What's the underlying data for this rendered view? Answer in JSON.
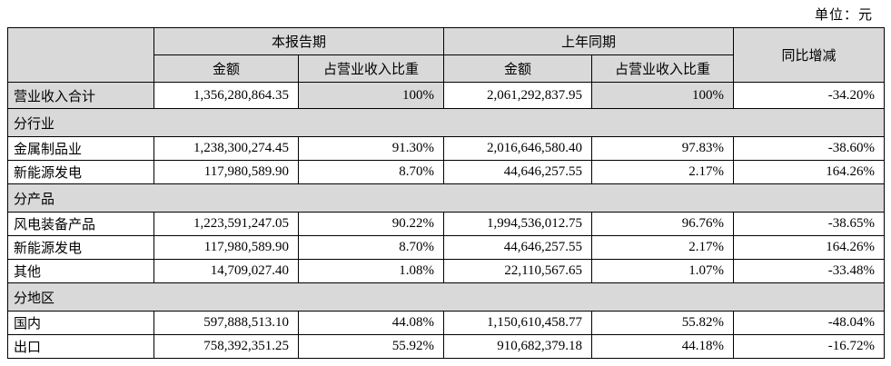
{
  "unit_label": "单位：元",
  "table": {
    "header": {
      "current_period": "本报告期",
      "prior_period": "上年同期",
      "yoy_change": "同比增减",
      "amount": "金额",
      "revenue_share": "占营业收入比重"
    },
    "rows": [
      {
        "type": "total",
        "label": "营业收入合计",
        "cur_amount": "1,356,280,864.35",
        "cur_share": "100%",
        "prior_amount": "2,061,292,837.95",
        "prior_share": "100%",
        "yoy": "-34.20%"
      },
      {
        "type": "section",
        "label": "分行业"
      },
      {
        "type": "data",
        "label": "金属制品业",
        "cur_amount": "1,238,300,274.45",
        "cur_share": "91.30%",
        "prior_amount": "2,016,646,580.40",
        "prior_share": "97.83%",
        "yoy": "-38.60%"
      },
      {
        "type": "data",
        "label": "新能源发电",
        "cur_amount": "117,980,589.90",
        "cur_share": "8.70%",
        "prior_amount": "44,646,257.55",
        "prior_share": "2.17%",
        "yoy": "164.26%"
      },
      {
        "type": "section",
        "label": "分产品"
      },
      {
        "type": "data",
        "label": "风电装备产品",
        "cur_amount": "1,223,591,247.05",
        "cur_share": "90.22%",
        "prior_amount": "1,994,536,012.75",
        "prior_share": "96.76%",
        "yoy": "-38.65%"
      },
      {
        "type": "data",
        "label": "新能源发电",
        "cur_amount": "117,980,589.90",
        "cur_share": "8.70%",
        "prior_amount": "44,646,257.55",
        "prior_share": "2.17%",
        "yoy": "164.26%"
      },
      {
        "type": "data",
        "label": "其他",
        "cur_amount": "14,709,027.40",
        "cur_share": "1.08%",
        "prior_amount": "22,110,567.65",
        "prior_share": "1.07%",
        "yoy": "-33.48%"
      },
      {
        "type": "section",
        "label": "分地区"
      },
      {
        "type": "data",
        "label": "国内",
        "cur_amount": "597,888,513.10",
        "cur_share": "44.08%",
        "prior_amount": "1,150,610,458.77",
        "prior_share": "55.82%",
        "yoy": "-48.04%"
      },
      {
        "type": "data",
        "label": "出口",
        "cur_amount": "758,392,351.25",
        "cur_share": "55.92%",
        "prior_amount": "910,682,379.18",
        "prior_share": "44.18%",
        "yoy": "-16.72%"
      }
    ]
  },
  "colors": {
    "header_bg": "#d9d9d9",
    "border": "#000000",
    "text": "#000000"
  }
}
